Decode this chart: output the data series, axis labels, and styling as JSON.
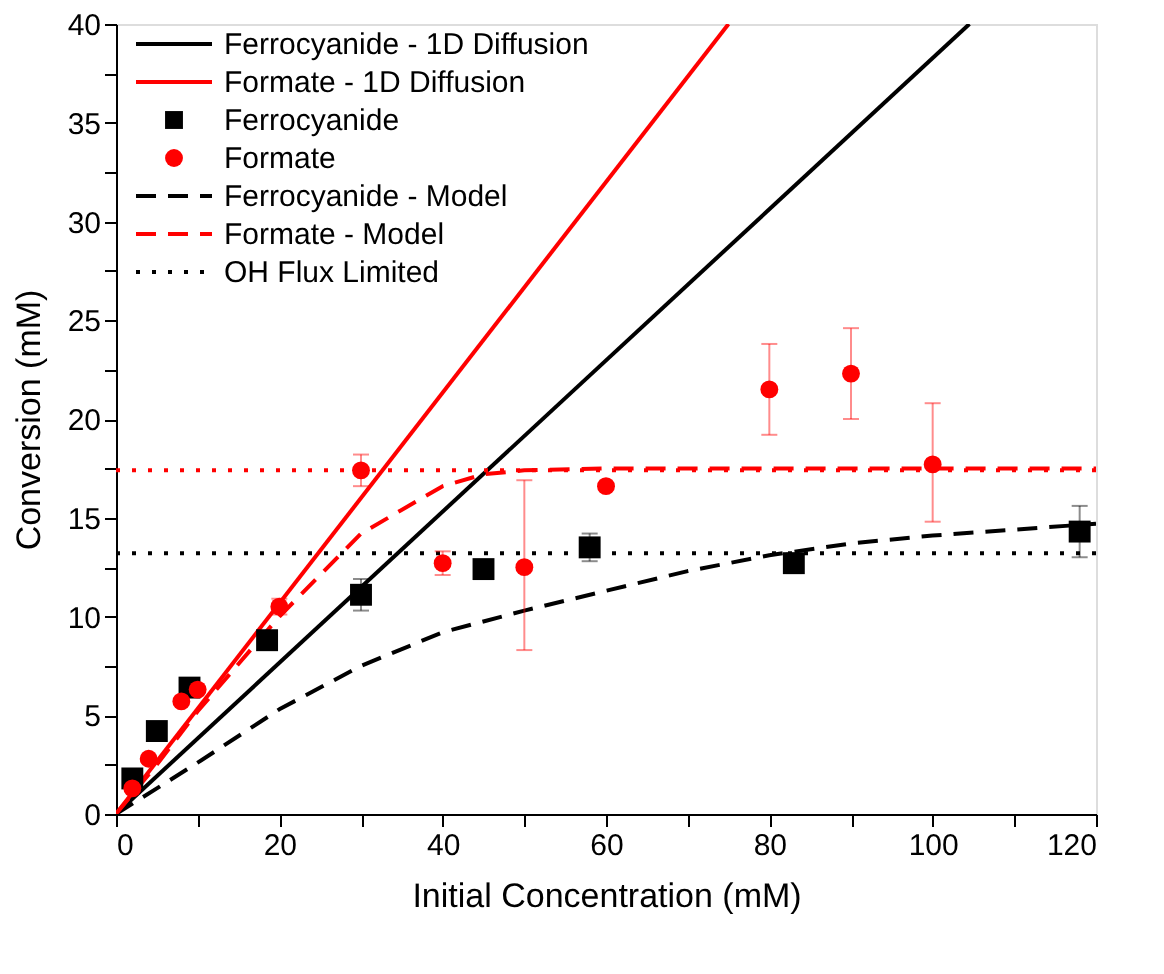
{
  "chart_data": {
    "type": "line",
    "xlabel": "Initial Concentration (mM)",
    "ylabel": "Conversion (mM)",
    "xlim": [
      0,
      120
    ],
    "xticks": [
      0,
      {
        "value": 10,
        "label": null
      },
      20,
      {
        "value": 30,
        "label": null
      },
      40,
      {
        "value": 50,
        "label": null
      },
      60,
      {
        "value": 70,
        "label": null
      },
      80,
      {
        "value": 90,
        "label": null
      },
      100,
      {
        "value": 110,
        "label": null
      },
      120
    ],
    "ylim": [
      0,
      40
    ],
    "yticks": [
      0,
      {
        "value": 2.5,
        "label": null
      },
      5,
      {
        "value": 7.5,
        "label": null
      },
      10,
      {
        "value": 12.5,
        "label": null
      },
      15,
      {
        "value": 17.5,
        "label": null
      },
      20,
      {
        "value": 22.5,
        "label": null
      },
      25,
      {
        "value": 27.5,
        "label": null
      },
      30,
      {
        "value": 32.5,
        "label": null
      },
      35,
      {
        "value": 37.5,
        "label": null
      },
      40
    ],
    "grid": false,
    "legend": "top left",
    "series": [
      {
        "name": "Ferrocyanide - 1D Diffusion",
        "line_style": "solid",
        "marker": "none",
        "color": "#000000",
        "x": [
          0,
          104.5
        ],
        "values": [
          0,
          40
        ]
      },
      {
        "name": "Formate - 1D Diffusion",
        "line_style": "solid",
        "marker": "none",
        "color": "#ff0000",
        "x": [
          0,
          75
        ],
        "values": [
          0,
          40
        ]
      },
      {
        "name": "Ferrocyanide",
        "type": "scatter",
        "marker": "square",
        "color": "#000000",
        "x": [
          2,
          5,
          9,
          18.5,
          30,
          45,
          58,
          83,
          118
        ],
        "values": [
          1.8,
          4.2,
          6.4,
          8.8,
          11.1,
          12.4,
          13.5,
          12.7,
          14.3
        ],
        "errors": [
          null,
          null,
          null,
          null,
          0.8,
          0.4,
          0.7,
          0.5,
          1.3
        ]
      },
      {
        "name": "Formate",
        "type": "scatter",
        "marker": "circle",
        "color": "#ff0000",
        "x": [
          2,
          4,
          8,
          10,
          20,
          30,
          40,
          50,
          60,
          80,
          90,
          100
        ],
        "values": [
          1.3,
          2.8,
          5.7,
          6.3,
          10.5,
          17.4,
          12.7,
          12.5,
          16.6,
          21.5,
          22.3,
          17.7
        ],
        "errors": [
          null,
          null,
          null,
          null,
          0.4,
          0.8,
          0.6,
          [
            8.3,
            16.9
          ],
          null,
          [
            19.2,
            23.8
          ],
          [
            20.0,
            24.6
          ],
          [
            14.8,
            20.8
          ]
        ]
      },
      {
        "name": "Ferrocyanide - Model",
        "line_style": "dashed",
        "marker": "none",
        "color": "#000000",
        "x": [
          0,
          5,
          10,
          20,
          30,
          40,
          50,
          60,
          70,
          80,
          90,
          100,
          110,
          120
        ],
        "values": [
          0,
          1.3,
          2.6,
          5.3,
          7.5,
          9.2,
          10.3,
          11.3,
          12.3,
          13.1,
          13.7,
          14.1,
          14.4,
          14.7
        ]
      },
      {
        "name": "Formate - Model",
        "line_style": "dashed",
        "marker": "none",
        "color": "#ff0000",
        "x": [
          0,
          5,
          10,
          20,
          30,
          40,
          45,
          50,
          60,
          120
        ],
        "values": [
          0,
          2.5,
          5.2,
          10.0,
          14.2,
          16.6,
          17.2,
          17.4,
          17.5,
          17.5
        ]
      },
      {
        "name": "OH Flux Limited",
        "line_style": "dotted",
        "marker": "none",
        "color": "#000000",
        "x": [
          0,
          120
        ],
        "values": [
          13.2,
          13.2
        ]
      },
      {
        "line_style": "dotted",
        "marker": "none",
        "color": "#ff0000",
        "x": [
          0,
          120
        ],
        "values": [
          17.4,
          17.4
        ]
      }
    ]
  }
}
